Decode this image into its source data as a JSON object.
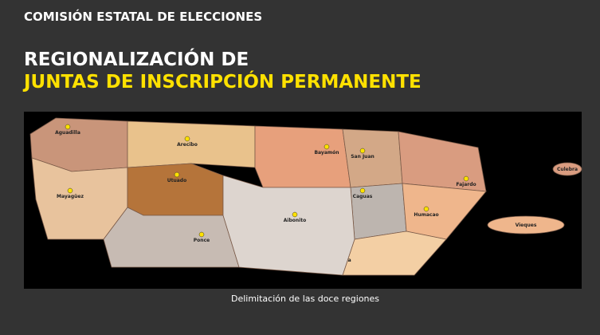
{
  "header": {
    "agency": "COMISIÓN ESTATAL DE ELECCIONES",
    "title_line1": "REGIONALIZACIÓN DE",
    "title_line2": "JUNTAS DE INSCRIPCIÓN PERMANENTE"
  },
  "map": {
    "caption": "Delimitación de las doce regiones",
    "regions": [
      {
        "name": "Aguadilla",
        "color": "#c9957a"
      },
      {
        "name": "Mayagüez",
        "color": "#e8c39d"
      },
      {
        "name": "Arecibo",
        "color": "#e9c28c"
      },
      {
        "name": "Utuado",
        "color": "#b5743a"
      },
      {
        "name": "Ponce",
        "color": "#c7bbb3"
      },
      {
        "name": "Bayamón",
        "color": "#e7a07c"
      },
      {
        "name": "San Juan",
        "color": "#d3a887"
      },
      {
        "name": "Fajardo",
        "color": "#d99c80"
      },
      {
        "name": "Caguas",
        "color": "#bdb5af"
      },
      {
        "name": "Humacao",
        "color": "#efb68c"
      },
      {
        "name": "Guayama",
        "color": "#f3cfa4"
      },
      {
        "name": "Aibonito",
        "color": "#ddd5cf"
      }
    ],
    "islands": [
      {
        "name": "Vieques",
        "color": "#efb68c"
      },
      {
        "name": "Culebra",
        "color": "#d99c80"
      }
    ]
  }
}
